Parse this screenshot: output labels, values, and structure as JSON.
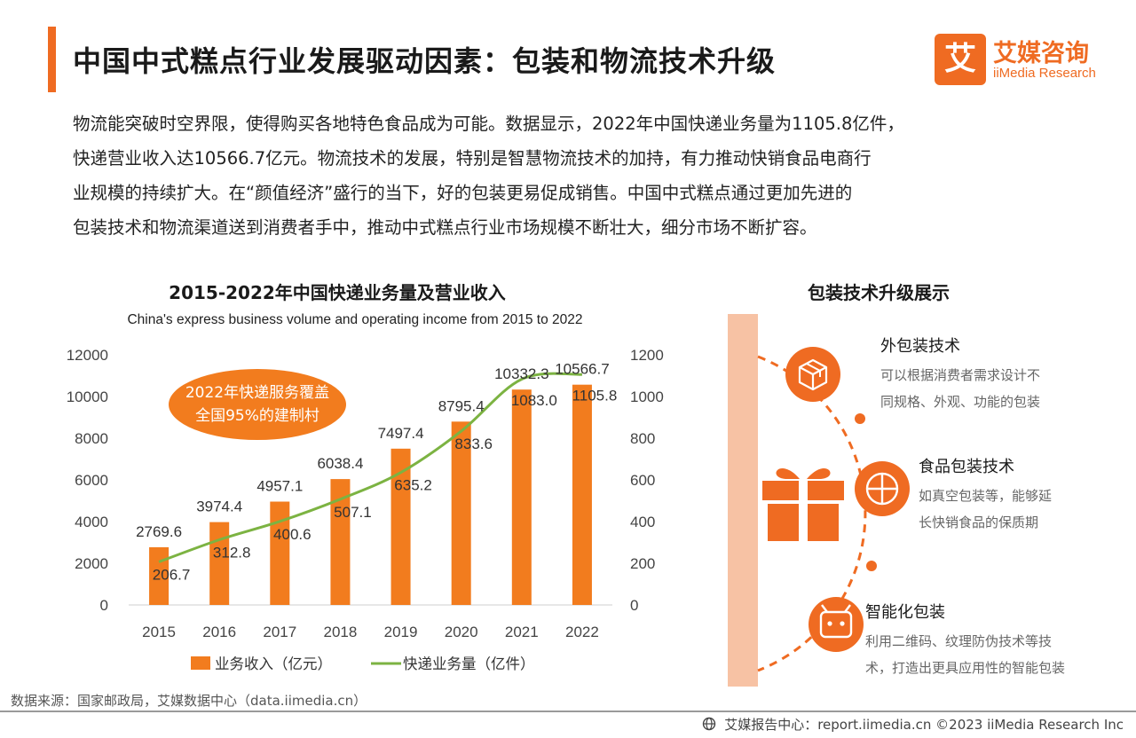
{
  "header": {
    "title": "中国中式糕点行业发展驱动因素：包装和物流技术升级",
    "accent_color": "#ef6b22"
  },
  "logo": {
    "mark": "艾",
    "cn": "艾媒咨询",
    "en": "iiMedia Research"
  },
  "intro": {
    "lines": [
      "物流能突破时空界限，使得购买各地特色食品成为可能。数据显示，2022年中国快递业务量为1105.8亿件，",
      "快递营业收入达10566.7亿元。物流技术的发展，特别是智慧物流技术的加持，有力推动快销食品电商行",
      "业规模的持续扩大。在“颜值经济”盛行的当下，好的包装更易促成销售。中国中式糕点通过更加先进的",
      "包装技术和物流渠道送到消费者手中，推动中式糕点行业市场规模不断壮大，细分市场不断扩容。"
    ]
  },
  "chart_data": {
    "type": "bar",
    "title": "2015-2022年中国快递业务量及营业收入",
    "subtitle": "China's express business volume and operating income from 2015 to 2022",
    "categories": [
      "2015",
      "2016",
      "2017",
      "2018",
      "2019",
      "2020",
      "2021",
      "2022"
    ],
    "series": [
      {
        "name": "业务收入（亿元）",
        "kind": "bar",
        "axis": "left",
        "color": "#f27c1e",
        "values": [
          2769.6,
          3974.4,
          4957.1,
          6038.4,
          7497.4,
          8795.4,
          10332.3,
          10566.7
        ],
        "labels": [
          "2769.6",
          "3974.4",
          "4957.1",
          "6038.4",
          "7497.4",
          "8795.4",
          "10332.3",
          "10566.7"
        ]
      },
      {
        "name": "快递业务量（亿件）",
        "kind": "line",
        "axis": "right",
        "color": "#7cb342",
        "values": [
          206.7,
          312.8,
          400.6,
          507.1,
          635.2,
          833.6,
          1083.0,
          1105.8
        ],
        "labels": [
          "206.7",
          "312.8",
          "400.6",
          "507.1",
          "635.2",
          "833.6",
          "1083.0",
          "1105.8"
        ]
      }
    ],
    "y_left": {
      "min": 0,
      "max": 12000,
      "ticks": [
        0,
        2000,
        4000,
        6000,
        8000,
        10000,
        12000
      ],
      "tick_labels": [
        "0",
        "2000",
        "4000",
        "6000",
        "8000",
        "10000",
        "12000"
      ]
    },
    "y_right": {
      "min": 0,
      "max": 1200,
      "ticks": [
        0,
        200,
        400,
        600,
        800,
        1000,
        1200
      ],
      "tick_labels": [
        "0",
        "200",
        "400",
        "600",
        "800",
        "1000",
        "1200"
      ]
    },
    "annotation": {
      "lines": [
        "2022年快递服务覆盖",
        "全国95%的建制村"
      ],
      "color": "#f27c1e"
    },
    "legend_position": "bottom",
    "grid": false
  },
  "packaging": {
    "title": "包装技术升级展示",
    "items": [
      {
        "icon": "box-icon",
        "title": "外包装技术",
        "desc": [
          "可以根据消费者需求设计不",
          "同规格、外观、功能的包装"
        ]
      },
      {
        "icon": "food-package-icon",
        "title": "食品包装技术",
        "desc": [
          "如真空包装等，能够延",
          "长快销食品的保质期"
        ]
      },
      {
        "icon": "smart-package-icon",
        "title": "智能化包装",
        "desc": [
          "利用二维码、纹理防伪技术等技",
          "术，打造出更具应用性的智能包装"
        ]
      }
    ],
    "strip_color": "#f7c2a4",
    "accent_color": "#ef6b22"
  },
  "footer": {
    "source": "数据来源：国家邮政局，艾媒数据中心（data.iimedia.cn）",
    "credit": "艾媒报告中心：report.iimedia.cn  ©2023  iiMedia Research  Inc"
  }
}
